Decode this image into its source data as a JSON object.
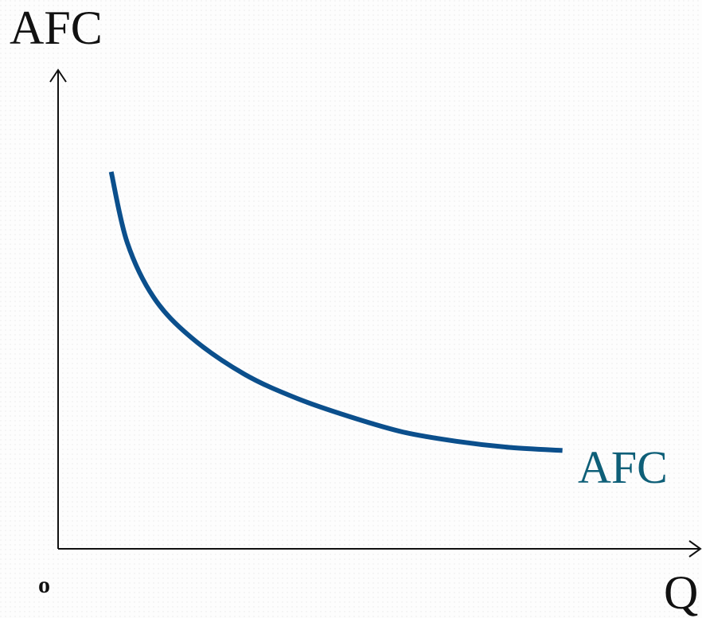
{
  "chart_data": {
    "type": "line",
    "title": "",
    "ylabel": "AFC",
    "xlabel": "Q",
    "origin_label": "o",
    "grid": false,
    "axis_ticks": false,
    "series": [
      {
        "name": "AFC",
        "color": "#0b4f8c",
        "label_color": "#0e5f78",
        "points": [
          {
            "x": 0.1,
            "y": 1.0
          },
          {
            "x": 0.13,
            "y": 0.77
          },
          {
            "x": 0.18,
            "y": 0.59
          },
          {
            "x": 0.25,
            "y": 0.46
          },
          {
            "x": 0.35,
            "y": 0.34
          },
          {
            "x": 0.45,
            "y": 0.26
          },
          {
            "x": 0.55,
            "y": 0.2
          },
          {
            "x": 0.65,
            "y": 0.15
          },
          {
            "x": 0.75,
            "y": 0.12
          },
          {
            "x": 0.85,
            "y": 0.1
          },
          {
            "x": 0.95,
            "y": 0.09
          }
        ]
      }
    ]
  }
}
